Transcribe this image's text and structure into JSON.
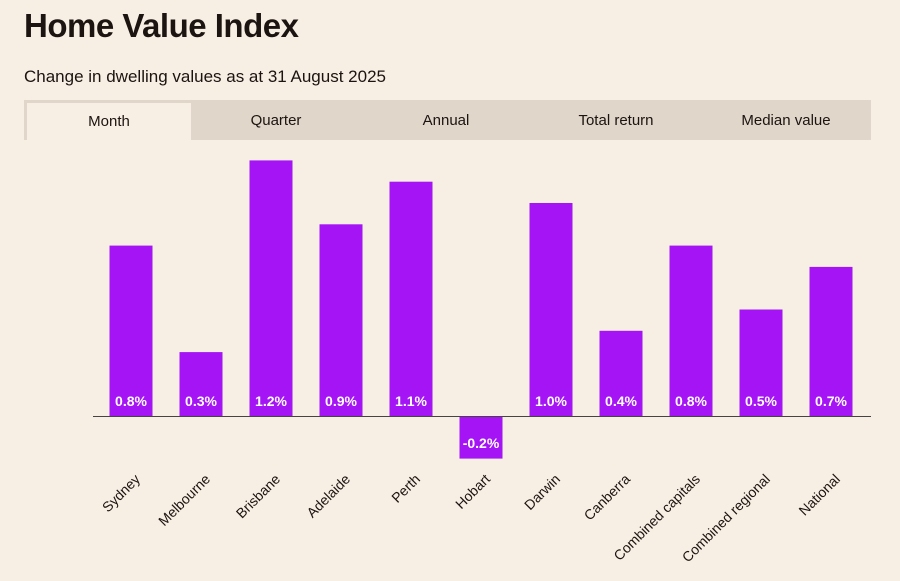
{
  "header": {
    "title": "Home Value Index",
    "subtitle": "Change in dwelling values as at 31 August 2025"
  },
  "tabs": [
    {
      "label": "Month",
      "active": true
    },
    {
      "label": "Quarter",
      "active": false
    },
    {
      "label": "Annual",
      "active": false
    },
    {
      "label": "Total return",
      "active": false
    },
    {
      "label": "Median value",
      "active": false
    }
  ],
  "colors": {
    "bar": "#a514f5",
    "axis": "#444444",
    "background": "#f7efe3"
  },
  "chart_data": {
    "type": "bar",
    "title": "Home Value Index",
    "subtitle": "Change in dwelling values as at 31 August 2025",
    "categories": [
      "Sydney",
      "Melbourne",
      "Brisbane",
      "Adelaide",
      "Perth",
      "Hobart",
      "Darwin",
      "Canberra",
      "Combined capitals",
      "Combined regional",
      "National"
    ],
    "values": [
      0.8,
      0.3,
      1.2,
      0.9,
      1.1,
      -0.2,
      1.0,
      0.4,
      0.8,
      0.5,
      0.7
    ],
    "labels": [
      "0.8%",
      "0.3%",
      "1.2%",
      "0.9%",
      "1.1%",
      "-0.2%",
      "1.0%",
      "0.4%",
      "0.8%",
      "0.5%",
      "0.7%"
    ],
    "ylim": [
      -0.2,
      1.2
    ],
    "xlabel": "",
    "ylabel": "",
    "grid": false,
    "unit": "%"
  }
}
